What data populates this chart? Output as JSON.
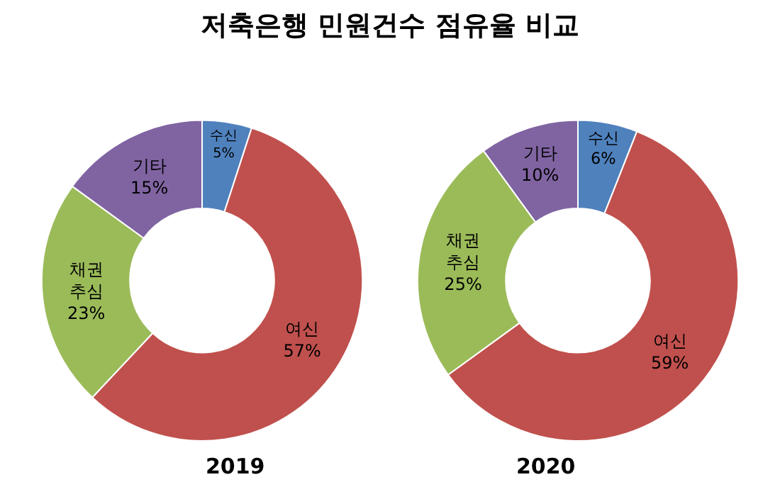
{
  "chart_data": [
    {
      "type": "donut",
      "title": "저축은행 민원건수 점유율 비교",
      "xlabel": "2019",
      "categories": [
        "수신",
        "여신",
        "채권추심",
        "기타"
      ],
      "values": [
        5,
        57,
        23,
        15
      ],
      "value_labels": [
        "5%",
        "57%",
        "23%",
        "15%"
      ],
      "colors": [
        "#4f81bd",
        "#c0504d",
        "#9bbb59",
        "#8064a2"
      ],
      "legend": false
    },
    {
      "type": "donut",
      "xlabel": "2020",
      "categories": [
        "수신",
        "여신",
        "채권추심",
        "기타"
      ],
      "values": [
        6,
        59,
        25,
        10
      ],
      "value_labels": [
        "6%",
        "59%",
        "25%",
        "10%"
      ],
      "colors": [
        "#4f81bd",
        "#c0504d",
        "#9bbb59",
        "#8064a2"
      ],
      "legend": false
    }
  ]
}
